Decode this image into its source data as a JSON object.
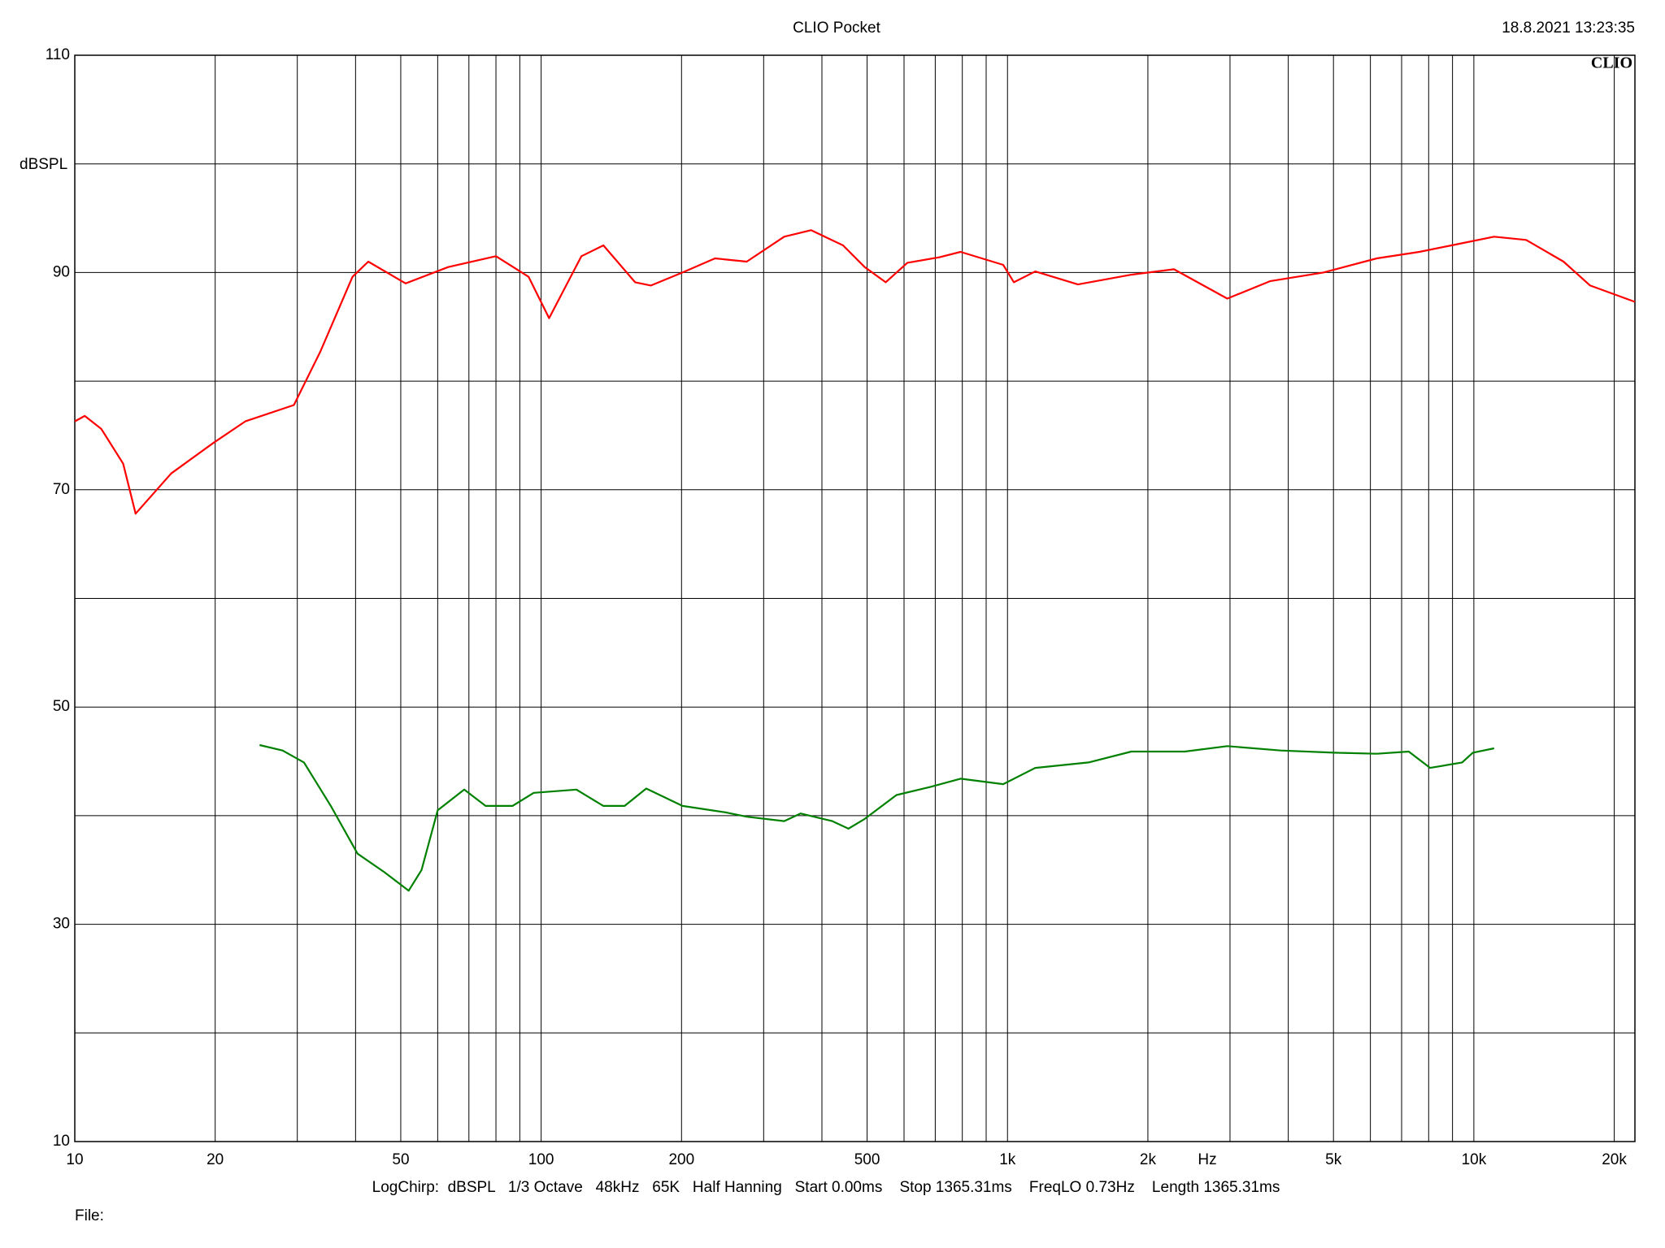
{
  "chart_data": {
    "type": "line",
    "title": "CLIO Pocket",
    "timestamp": "18.8.2021 13:23:35",
    "logo": "CLIO",
    "ylabel": "dBSPL",
    "xlabel": "Hz",
    "info": "LogChirp:  dBSPL   1/3 Octave   48kHz   65K   Half Hanning   Start 0.00ms    Stop 1365.31ms    FreqLO 0.73Hz    Length 1365.31ms",
    "file_label": "File:",
    "xscale": "log",
    "xlim": [
      10,
      22150
    ],
    "ylim": [
      10,
      110
    ],
    "xticks": [
      10,
      20,
      50,
      100,
      200,
      500,
      {
        "value": 1000,
        "label": "1k"
      },
      {
        "value": 2000,
        "label": "2k"
      },
      {
        "value": 5000,
        "label": "5k"
      },
      {
        "value": 10000,
        "label": "10k"
      },
      {
        "value": 20000,
        "label": "20k"
      }
    ],
    "xgrid": [
      30,
      40,
      60,
      70,
      80,
      90,
      300,
      400,
      600,
      700,
      800,
      900,
      3000,
      4000,
      6000,
      7000,
      8000,
      9000
    ],
    "yticks": [
      10,
      30,
      50,
      70,
      90,
      110
    ],
    "ygrid": [
      20,
      40,
      60,
      80,
      100
    ],
    "grid": true,
    "series": [
      {
        "color": "#ff0000",
        "x": [
          10,
          10.5,
          11.4,
          12.7,
          13.5,
          16.1,
          19.8,
          23.2,
          29.5,
          33.6,
          39.4,
          42.6,
          51.2,
          63.2,
          80,
          94,
          104,
          122,
          136,
          159,
          172,
          201,
          236,
          276,
          332,
          379,
          444,
          494,
          548,
          610,
          714,
          793,
          979,
          1032,
          1147,
          1416,
          1843,
          2275,
          2960,
          3655,
          4756,
          6192,
          7643,
          8955,
          11053,
          12946,
          15570,
          17755,
          22150
        ],
        "values": [
          76.3,
          76.8,
          75.6,
          72.4,
          67.8,
          71.5,
          74.3,
          76.3,
          77.8,
          82.7,
          89.6,
          91.0,
          89.0,
          90.5,
          91.5,
          89.6,
          85.8,
          91.5,
          92.5,
          89.1,
          88.8,
          90.0,
          91.3,
          91.0,
          93.3,
          93.9,
          92.5,
          90.5,
          89.1,
          90.9,
          91.4,
          91.9,
          90.7,
          89.1,
          90.1,
          88.9,
          89.8,
          90.3,
          87.6,
          89.2,
          90.0,
          91.3,
          91.9,
          92.5,
          93.3,
          93.0,
          91.0,
          88.8,
          87.3
        ]
      },
      {
        "color": "#008000",
        "x": [
          24.9,
          27.9,
          31,
          35.4,
          40.4,
          46.1,
          52,
          55.4,
          60,
          68.4,
          76,
          86.8,
          96.4,
          119,
          136,
          151,
          168,
          201,
          249,
          276,
          332,
          360,
          421,
          456,
          494,
          578,
          677,
          793,
          979,
          1147,
          1492,
          1843,
          2399,
          2960,
          3853,
          5014,
          6192,
          7251,
          8057,
          9436,
          9947,
          11053
        ],
        "values": [
          46.5,
          46.0,
          44.9,
          40.9,
          36.5,
          34.8,
          33.1,
          35.0,
          40.5,
          42.4,
          40.9,
          40.9,
          42.1,
          42.4,
          40.9,
          40.9,
          42.5,
          40.9,
          40.3,
          39.9,
          39.5,
          40.2,
          39.5,
          38.8,
          39.7,
          41.9,
          42.6,
          43.4,
          42.9,
          44.4,
          44.9,
          45.9,
          45.9,
          46.4,
          46.0,
          45.8,
          45.7,
          45.9,
          44.4,
          44.9,
          45.8,
          46.2
        ]
      }
    ]
  }
}
